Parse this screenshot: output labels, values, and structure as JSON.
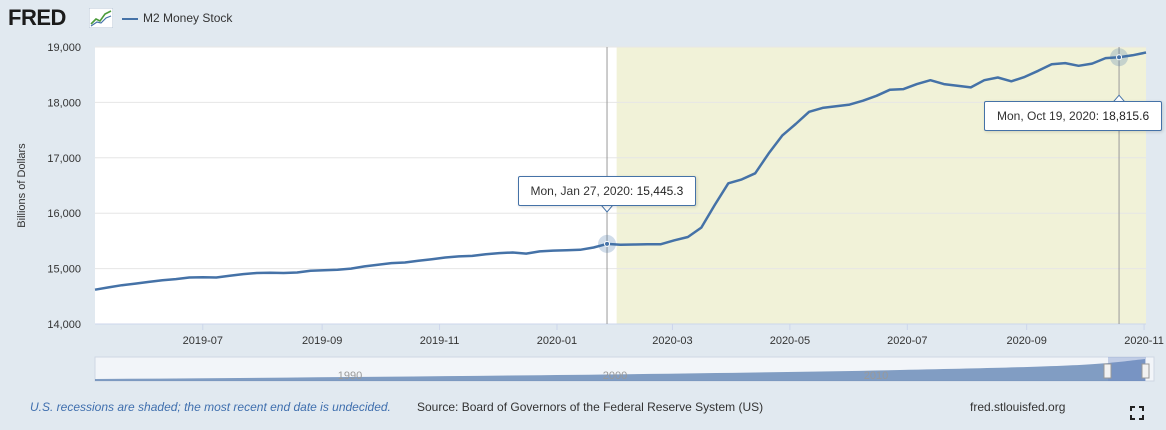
{
  "header": {
    "logo_text": "FRED",
    "logo_icon": "trend-chart-icon",
    "legend_label": "M2 Money Stock"
  },
  "colors": {
    "series": "#4572a7",
    "recession_shade": "#f1f2d8",
    "page_bg": "#e1e9f0",
    "plot_bg": "#ffffff",
    "navigator_fill": "#5b7fb0"
  },
  "chart_data": {
    "type": "line",
    "title": "",
    "xlabel": "",
    "ylabel": "Billions of Dollars",
    "ylim": [
      14000,
      19000
    ],
    "yticks": [
      14000,
      15000,
      16000,
      17000,
      18000,
      19000
    ],
    "ytick_labels": [
      "14,000",
      "15,000",
      "16,000",
      "17,000",
      "18,000",
      "19,000"
    ],
    "xlim": [
      "2019-05-06",
      "2020-11-02"
    ],
    "xtick_dates": [
      "2019-07-01",
      "2019-09-01",
      "2019-11-01",
      "2020-01-01",
      "2020-03-01",
      "2020-05-01",
      "2020-07-01",
      "2020-09-01",
      "2020-11-01"
    ],
    "xtick_labels": [
      "2019-07",
      "2019-09",
      "2019-11",
      "2020-01",
      "2020-03",
      "2020-05",
      "2020-07",
      "2020-09",
      "2020-11"
    ],
    "grid": "horizontal",
    "legend": "top-left",
    "recession_shading": {
      "start": "2020-02-01",
      "end": "2020-11-02"
    },
    "series": [
      {
        "name": "M2 Money Stock",
        "x": [
          "2019-05-06",
          "2019-05-13",
          "2019-05-20",
          "2019-05-27",
          "2019-06-03",
          "2019-06-10",
          "2019-06-17",
          "2019-06-24",
          "2019-07-01",
          "2019-07-08",
          "2019-07-15",
          "2019-07-22",
          "2019-07-29",
          "2019-08-05",
          "2019-08-12",
          "2019-08-19",
          "2019-08-26",
          "2019-09-02",
          "2019-09-09",
          "2019-09-16",
          "2019-09-23",
          "2019-09-30",
          "2019-10-07",
          "2019-10-14",
          "2019-10-21",
          "2019-10-28",
          "2019-11-04",
          "2019-11-11",
          "2019-11-18",
          "2019-11-25",
          "2019-12-02",
          "2019-12-09",
          "2019-12-16",
          "2019-12-23",
          "2019-12-30",
          "2020-01-06",
          "2020-01-13",
          "2020-01-20",
          "2020-01-27",
          "2020-02-03",
          "2020-02-10",
          "2020-02-17",
          "2020-02-24",
          "2020-03-02",
          "2020-03-09",
          "2020-03-16",
          "2020-03-23",
          "2020-03-30",
          "2020-04-06",
          "2020-04-13",
          "2020-04-20",
          "2020-04-27",
          "2020-05-04",
          "2020-05-11",
          "2020-05-18",
          "2020-05-25",
          "2020-06-01",
          "2020-06-08",
          "2020-06-15",
          "2020-06-22",
          "2020-06-29",
          "2020-07-06",
          "2020-07-13",
          "2020-07-20",
          "2020-07-27",
          "2020-08-03",
          "2020-08-10",
          "2020-08-17",
          "2020-08-24",
          "2020-08-31",
          "2020-09-07",
          "2020-09-14",
          "2020-09-21",
          "2020-09-28",
          "2020-10-05",
          "2020-10-12",
          "2020-10-19",
          "2020-10-26",
          "2020-11-02"
        ],
        "y": [
          14620,
          14660,
          14700,
          14730,
          14760,
          14790,
          14810,
          14840,
          14845,
          14840,
          14870,
          14900,
          14920,
          14925,
          14920,
          14930,
          14960,
          14970,
          14980,
          15000,
          15040,
          15070,
          15100,
          15110,
          15140,
          15170,
          15200,
          15220,
          15230,
          15260,
          15280,
          15290,
          15270,
          15310,
          15325,
          15330,
          15340,
          15380,
          15445.3,
          15430,
          15435,
          15440,
          15440,
          15510,
          15570,
          15740,
          16150,
          16540,
          16610,
          16720,
          17080,
          17400,
          17610,
          17830,
          17900,
          17930,
          17960,
          18030,
          18120,
          18230,
          18240,
          18330,
          18400,
          18330,
          18300,
          18270,
          18400,
          18450,
          18380,
          18460,
          18570,
          18690,
          18710,
          18660,
          18700,
          18800,
          18815.6,
          18850,
          18900
        ]
      }
    ],
    "annotations": [
      {
        "date_label": "Mon, Jan 27, 2020:",
        "value_label": "15,445.3",
        "x": "2020-01-27",
        "y": 15445.3
      },
      {
        "date_label": "Mon, Oct 19, 2020:",
        "value_label": "18,815.6",
        "x": "2020-10-19",
        "y": 18815.6
      }
    ],
    "navigator": {
      "tick_labels": [
        "1990",
        "2000",
        "2010"
      ]
    }
  },
  "footer": {
    "recession_note": "U.S. recessions are shaded; the most recent end date is undecided.",
    "source": "Source: Board of Governors of the Federal Reserve System (US)",
    "site": "fred.stlouisfed.org",
    "fullscreen_icon": "expand-icon"
  }
}
